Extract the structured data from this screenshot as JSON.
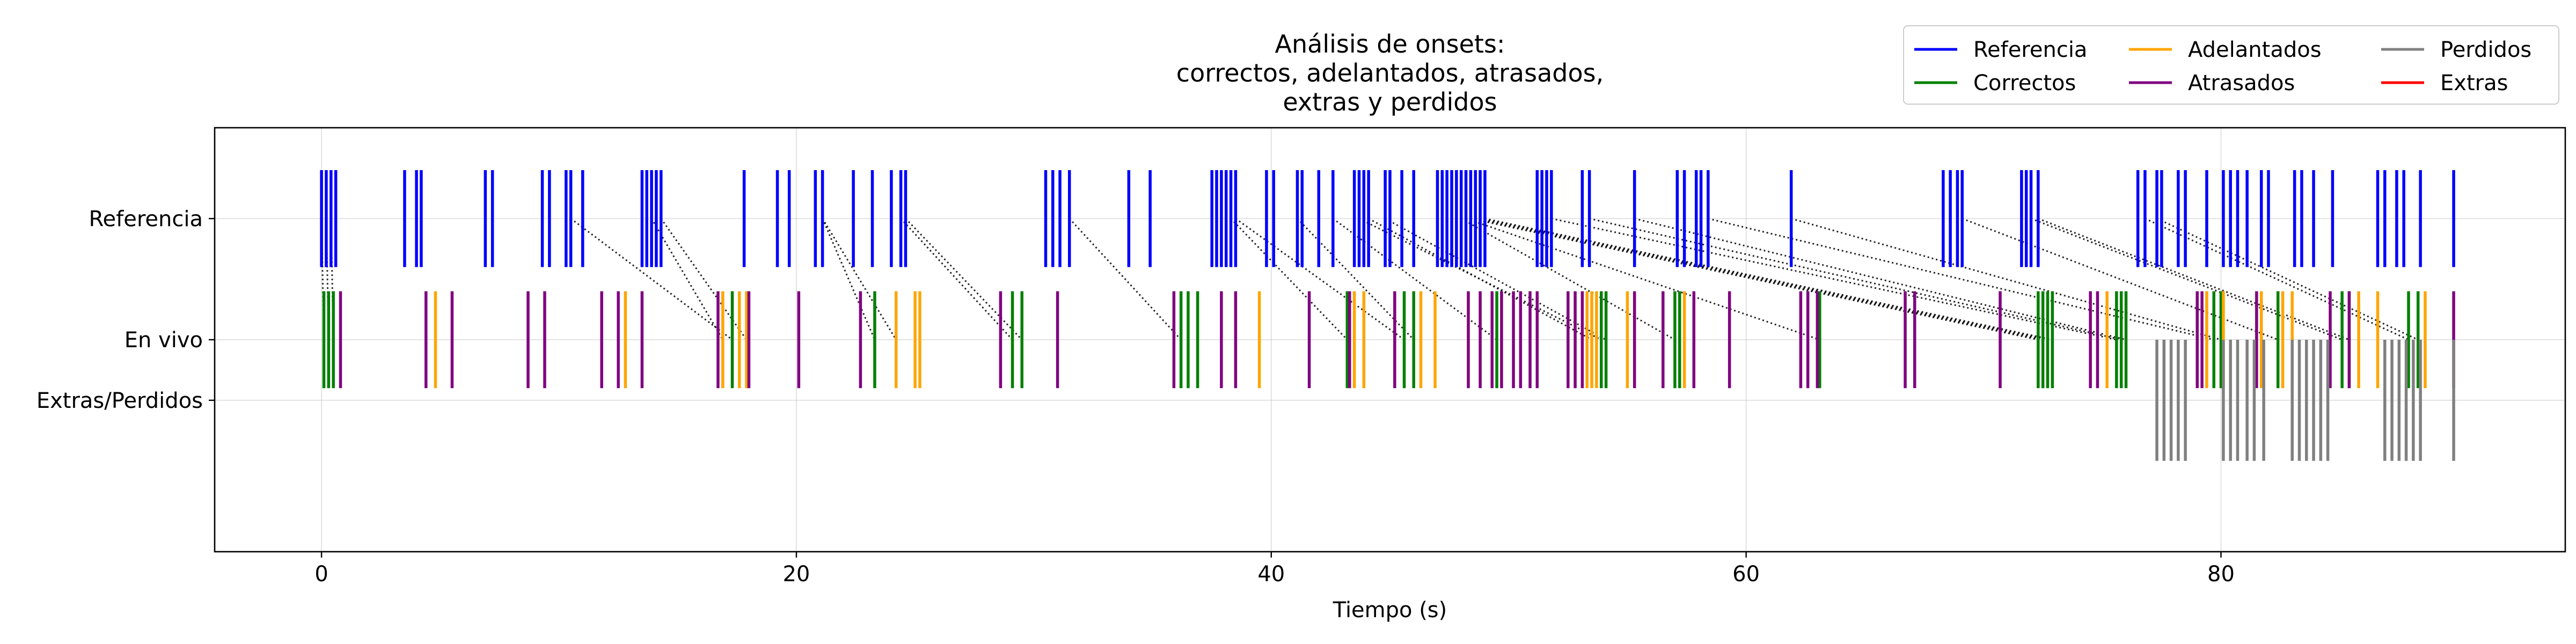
{
  "chart_data": {
    "type": "event-raster",
    "title_lines": [
      "Análisis de onsets:",
      "correctos, adelantados, atrasados,",
      "extras y perdidos"
    ],
    "xlabel": "Tiempo (s)",
    "xlim": [
      -4.5,
      94.5
    ],
    "x_ticks": [
      0,
      20,
      40,
      60,
      80
    ],
    "ylim": [
      -4.5,
      2.5
    ],
    "rows": [
      {
        "label": "Referencia",
        "y": 1
      },
      {
        "label": "En vivo",
        "y": -1
      },
      {
        "label": "Extras/Perdidos",
        "y": -2
      }
    ],
    "grid": true,
    "legend_position": "upper right",
    "legend": [
      {
        "label": "Referencia",
        "color": "#0000ff"
      },
      {
        "label": "Correctos",
        "color": "#008000"
      },
      {
        "label": "Adelantados",
        "color": "#ffa500"
      },
      {
        "label": "Atrasados",
        "color": "#800080"
      },
      {
        "label": "Perdidos",
        "color": "#808080"
      },
      {
        "label": "Extras",
        "color": "#ff0000"
      }
    ],
    "series": [
      {
        "name": "Referencia",
        "color": "#0000ff",
        "y_from": 0.2,
        "y_to": 1.8,
        "x": [
          0.0,
          0.2,
          0.4,
          0.6,
          3.5,
          4.0,
          4.2,
          6.9,
          7.2,
          9.3,
          9.6,
          10.3,
          10.5,
          11.0,
          13.5,
          13.7,
          13.9,
          14.1,
          14.3,
          17.8,
          19.2,
          19.7,
          20.8,
          21.1,
          22.4,
          23.2,
          24.0,
          24.4,
          24.6,
          30.5,
          30.8,
          31.1,
          31.5,
          34.0,
          34.9,
          37.5,
          37.7,
          37.9,
          38.1,
          38.3,
          38.5,
          39.8,
          40.1,
          41.1,
          41.3,
          42.0,
          42.6,
          43.5,
          43.7,
          43.9,
          44.1,
          44.8,
          45.0,
          45.5,
          46.0,
          47.0,
          47.2,
          47.4,
          47.6,
          47.8,
          48.0,
          48.2,
          48.4,
          48.6,
          48.8,
          49.0,
          51.2,
          51.4,
          51.6,
          51.8,
          53.1,
          53.4,
          55.3,
          57.1,
          57.4,
          57.9,
          58.1,
          58.4,
          61.9,
          68.3,
          68.6,
          68.9,
          69.1,
          71.6,
          71.8,
          72.0,
          72.3,
          76.5,
          76.8,
          77.3,
          77.5,
          78.2,
          78.5,
          79.4,
          80.1,
          80.4,
          80.7,
          81.1,
          81.7,
          82.0,
          83.1,
          83.4,
          83.9,
          84.7,
          86.6,
          86.9,
          87.4,
          87.7,
          88.4,
          89.8
        ]
      },
      {
        "name": "Correctos",
        "color": "#008000",
        "y_from": -1.8,
        "y_to": -0.2,
        "x": [
          0.1,
          0.3,
          0.5,
          17.3,
          23.3,
          29.1,
          29.5,
          36.2,
          36.5,
          36.9,
          43.2,
          45.6,
          46.0,
          49.5,
          53.9,
          54.1,
          57.0,
          57.2,
          63.1,
          72.3,
          72.5,
          72.7,
          72.9,
          75.6,
          75.8,
          76.0,
          79.7,
          80.0,
          82.4,
          85.1,
          85.4,
          87.9,
          88.3
        ]
      },
      {
        "name": "Adelantados",
        "color": "#ffa500",
        "y_from": -1.8,
        "y_to": -0.2,
        "x": [
          4.8,
          12.8,
          16.9,
          17.6,
          17.9,
          24.2,
          25.0,
          25.2,
          39.5,
          43.5,
          43.9,
          46.3,
          46.9,
          53.3,
          53.5,
          53.7,
          55.0,
          57.4,
          75.2,
          79.4,
          80.1,
          81.7,
          82.6,
          83.0,
          85.8,
          86.6,
          88.6
        ]
      },
      {
        "name": "Atrasados",
        "color": "#800080",
        "y_from": -1.8,
        "y_to": -0.2,
        "x": [
          0.8,
          4.4,
          5.5,
          8.7,
          9.4,
          11.8,
          12.5,
          13.5,
          16.7,
          18.0,
          20.1,
          22.7,
          28.6,
          31.0,
          35.9,
          37.9,
          38.5,
          41.6,
          43.3,
          45.2,
          48.3,
          48.8,
          49.3,
          49.7,
          50.2,
          50.5,
          50.9,
          51.2,
          52.5,
          52.8,
          53.1,
          55.3,
          56.5,
          57.8,
          59.3,
          62.3,
          62.6,
          63.0,
          66.7,
          67.1,
          70.7,
          74.5,
          74.8,
          79.0,
          79.2,
          81.5,
          84.6,
          85.4,
          89.8
        ]
      },
      {
        "name": "Perdidos",
        "color": "#808080",
        "y_from": -3.0,
        "y_to": -1.0,
        "x": [
          77.3,
          77.6,
          77.9,
          78.2,
          78.5,
          80.1,
          80.4,
          80.7,
          81.1,
          81.4,
          81.8,
          83.0,
          83.3,
          83.6,
          83.9,
          84.2,
          84.5,
          86.9,
          87.2,
          87.5,
          87.8,
          88.1,
          88.4,
          89.8
        ]
      },
      {
        "name": "Extras",
        "color": "#ff0000",
        "y_from": -2.8,
        "y_to": -1.2,
        "x": []
      }
    ],
    "match_links": [
      [
        0.0,
        0.1
      ],
      [
        0.2,
        0.3
      ],
      [
        0.4,
        0.5
      ],
      [
        10.5,
        17.3
      ],
      [
        13.9,
        16.9
      ],
      [
        14.3,
        17.9
      ],
      [
        21.1,
        23.3
      ],
      [
        21.1,
        24.2
      ],
      [
        24.4,
        29.1
      ],
      [
        24.6,
        29.5
      ],
      [
        31.5,
        36.2
      ],
      [
        38.3,
        43.2
      ],
      [
        38.5,
        45.6
      ],
      [
        41.1,
        46.0
      ],
      [
        42.6,
        49.5
      ],
      [
        43.7,
        53.9
      ],
      [
        44.1,
        53.5
      ],
      [
        44.8,
        54.1
      ],
      [
        48.0,
        57.0
      ],
      [
        48.2,
        63.1
      ],
      [
        48.4,
        72.3
      ],
      [
        48.6,
        72.5
      ],
      [
        48.8,
        72.7
      ],
      [
        49.0,
        72.9
      ],
      [
        51.8,
        75.6
      ],
      [
        53.4,
        75.8
      ],
      [
        55.3,
        76.0
      ],
      [
        58.4,
        79.7
      ],
      [
        61.9,
        80.0
      ],
      [
        69.1,
        82.4
      ],
      [
        72.0,
        85.1
      ],
      [
        72.3,
        85.4
      ],
      [
        76.8,
        87.9
      ],
      [
        77.3,
        88.3
      ]
    ]
  }
}
